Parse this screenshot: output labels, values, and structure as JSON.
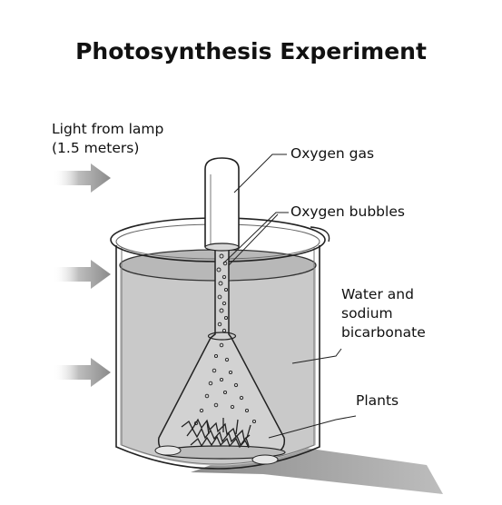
{
  "title": "Photosynthesis Experiment",
  "labels": {
    "light_line1": "Light from lamp",
    "light_line2": "(1.5 meters)",
    "oxygen_gas": "Oxygen gas",
    "oxygen_bubbles": "Oxygen bubbles",
    "water_line1": "Water and",
    "water_line2": "sodium",
    "water_line3": "bicarbonate",
    "plants": "Plants"
  }
}
